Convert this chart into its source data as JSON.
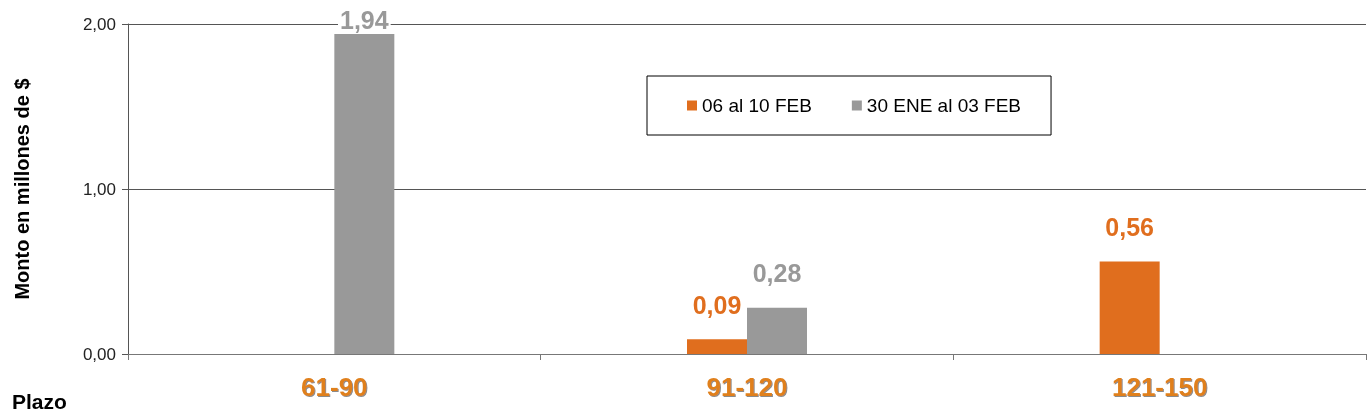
{
  "chart_data": {
    "type": "bar",
    "xlabel": "Plazo",
    "ylabel": "Monto en millones de $",
    "categories": [
      "61-90",
      "91-120",
      "121-150"
    ],
    "series": [
      {
        "name": "06 al 10 FEB",
        "color": "#e06e1e",
        "values": [
          null,
          0.09,
          0.56
        ],
        "value_labels": [
          null,
          "0,09",
          "0,56"
        ]
      },
      {
        "name": "30 ENE al 03 FEB",
        "color": "#999999",
        "values": [
          1.94,
          0.28,
          null
        ],
        "value_labels": [
          "1,94",
          "0,28",
          null
        ]
      }
    ],
    "ylim": [
      0,
      2
    ],
    "yticks": [
      {
        "value": 0,
        "label": "0,00"
      },
      {
        "value": 1,
        "label": "1,00"
      },
      {
        "value": 2,
        "label": "2,00"
      }
    ],
    "grid": "y",
    "legend": "top"
  }
}
